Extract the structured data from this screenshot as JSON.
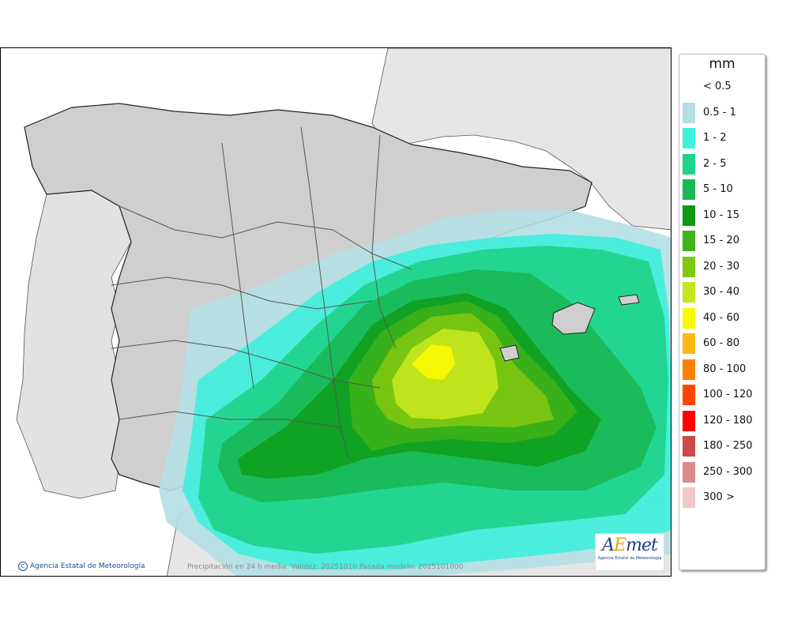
{
  "legend": {
    "title": "mm",
    "items": [
      {
        "label": "< 0.5",
        "color": "#ffffff"
      },
      {
        "label": "0.5 - 1",
        "color": "#b4dfe3"
      },
      {
        "label": "1 - 2",
        "color": "#3ff0dc"
      },
      {
        "label": "2 - 5",
        "color": "#1ed38a"
      },
      {
        "label": "5 - 10",
        "color": "#1ab854"
      },
      {
        "label": "10 - 15",
        "color": "#0e9a12"
      },
      {
        "label": "15 - 20",
        "color": "#3fb319"
      },
      {
        "label": "20 - 30",
        "color": "#7ec80f"
      },
      {
        "label": "30 - 40",
        "color": "#c3e61d"
      },
      {
        "label": "40 - 60",
        "color": "#fafa00"
      },
      {
        "label": "60 - 80",
        "color": "#fdb714"
      },
      {
        "label": "80 - 100",
        "color": "#fd7f00"
      },
      {
        "label": "100 - 120",
        "color": "#ff4600"
      },
      {
        "label": "120 - 180",
        "color": "#ff0000"
      },
      {
        "label": "180 - 250",
        "color": "#cc4a4a"
      },
      {
        "label": "250 - 300",
        "color": "#dd8c8c"
      },
      {
        "label": "300 >",
        "color": "#f0c8c8"
      }
    ]
  },
  "footer": {
    "credit": "Agencia Estatal de Meteorología",
    "validity": "Precipitación en 24 h media. Validez: 20251010 Pasada modelo: 2025101000"
  },
  "logo": {
    "main_a": "A",
    "main_e": "E",
    "main_rest": "met",
    "sub": "Agencia Estatal de Meteorología"
  },
  "colors": {
    "land": "#cfcfcf",
    "other_land": "#e6e6e6",
    "sea": "#ffffff",
    "border": "#222222"
  }
}
